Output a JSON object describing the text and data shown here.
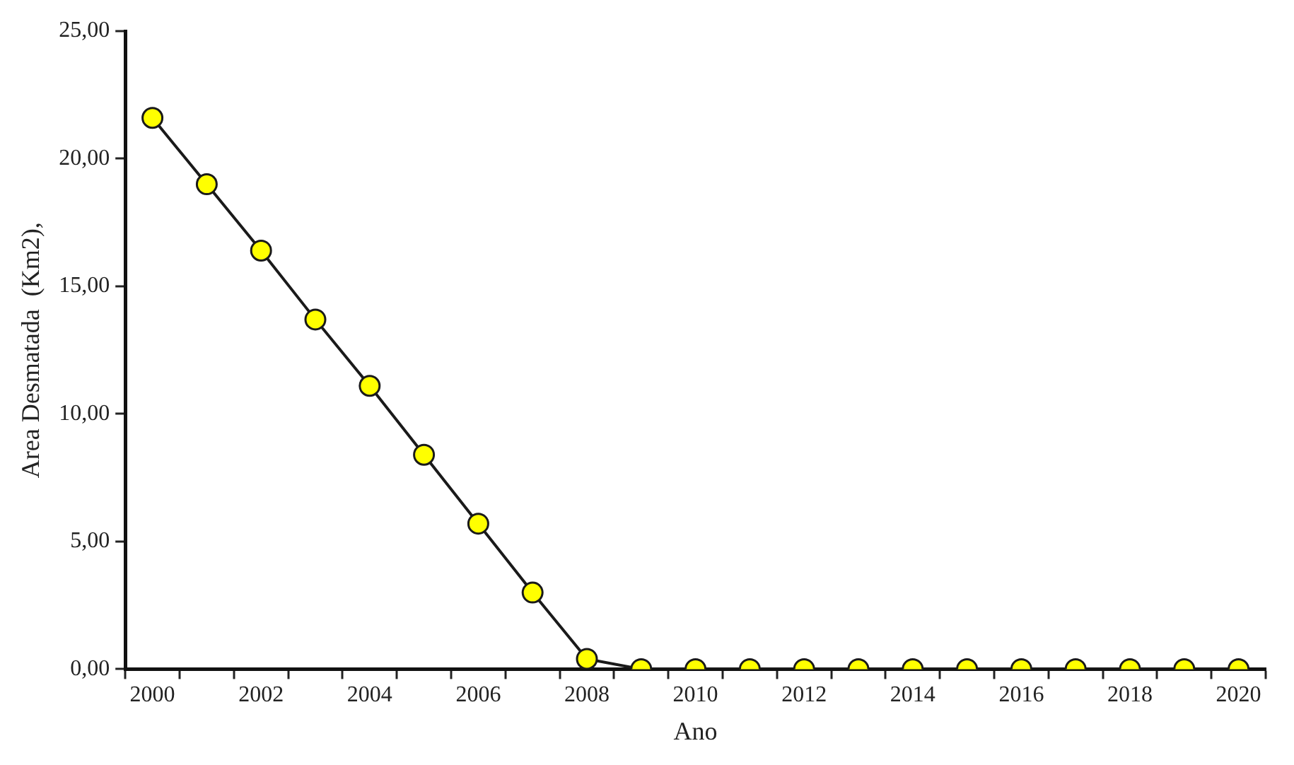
{
  "chart_data": {
    "type": "line",
    "xlabel": "Ano",
    "ylabel": "Area Desmatada  (Km2),",
    "categories": [
      "2000",
      null,
      "2002",
      null,
      "2004",
      null,
      "2006",
      null,
      "2008",
      null,
      "2010",
      null,
      "2012",
      null,
      "2014",
      null,
      "2016",
      null,
      "2018",
      null,
      "2020"
    ],
    "series": [
      {
        "color": "#ffff00",
        "values": [
          21.6,
          19.0,
          16.4,
          13.7,
          11.1,
          8.4,
          5.7,
          3.0,
          0.4,
          0,
          0,
          0,
          0,
          0,
          0,
          0,
          0,
          0,
          0,
          0,
          0
        ]
      }
    ],
    "ylim": [
      0,
      25
    ],
    "yticks": [
      {
        "value": 0,
        "label": "0,00"
      },
      {
        "value": 5,
        "label": "5,00"
      },
      {
        "value": 10,
        "label": "10,00"
      },
      {
        "value": 15,
        "label": "15,00"
      },
      {
        "value": 20,
        "label": "20,00"
      },
      {
        "value": 25,
        "label": "25,00"
      }
    ],
    "marker": "circle",
    "line_style": "solid",
    "grid": false,
    "legend": false
  }
}
